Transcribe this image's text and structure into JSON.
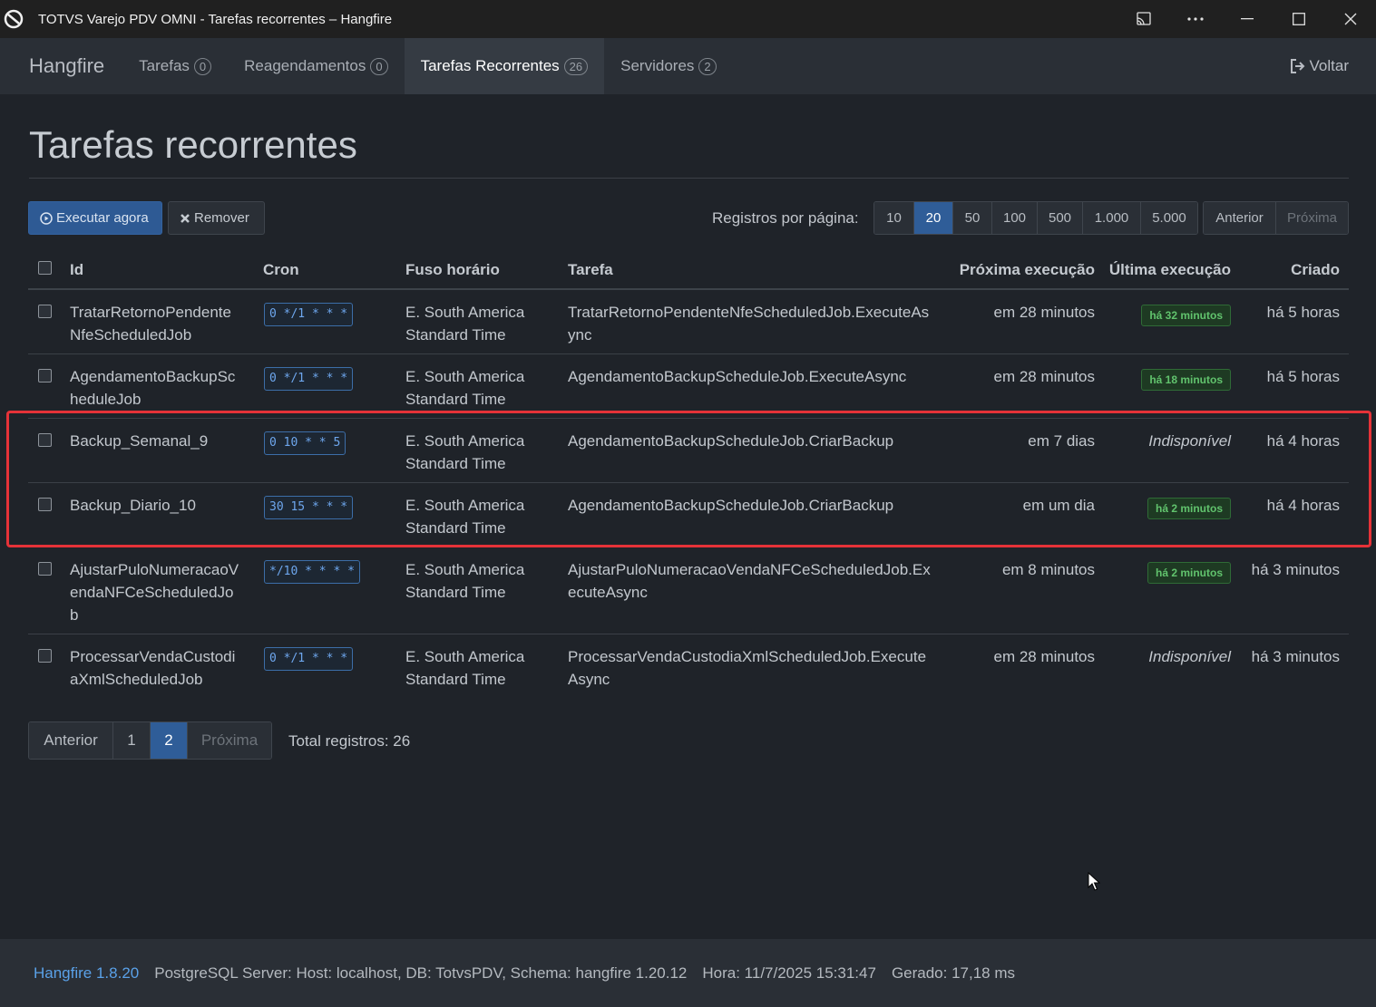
{
  "window": {
    "title": "TOTVS Varejo PDV OMNI - Tarefas recorrentes – Hangfire",
    "controls": [
      "cast-icon",
      "more-icon",
      "minimize-icon",
      "maximize-icon",
      "close-icon"
    ]
  },
  "nav": {
    "brand": "Hangfire",
    "items": [
      {
        "label": "Tarefas",
        "count": "0"
      },
      {
        "label": "Reagendamentos",
        "count": "0"
      },
      {
        "label": "Tarefas Recorrentes",
        "count": "26"
      },
      {
        "label": "Servidores",
        "count": "2"
      }
    ],
    "back_label": "Voltar"
  },
  "page": {
    "title": "Tarefas recorrentes"
  },
  "toolbar": {
    "run_now": "Executar agora",
    "remove": "Remover",
    "per_page_label": "Registros por página:",
    "per_page_options": [
      "10",
      "20",
      "50",
      "100",
      "500",
      "1.000",
      "5.000"
    ],
    "per_page_selected": "20",
    "prev": "Anterior",
    "next": "Próxima"
  },
  "table": {
    "headers": {
      "id": "Id",
      "cron": "Cron",
      "timezone": "Fuso horário",
      "job": "Tarefa",
      "next": "Próxima execução",
      "last": "Última execução",
      "created": "Criado"
    },
    "rows": [
      {
        "id": "TratarRetornoPendenteNfeScheduledJob",
        "id_l1": "TratarRetornoPendente",
        "id_l2": "NfeScheduledJob",
        "cron": "0 */1 * * *",
        "tz_l1": "E. South America",
        "tz_l2": "Standard Time",
        "job_l1": "TratarRetornoPendenteNfeScheduledJob.ExecuteAs",
        "job_l2": "ync",
        "next": "em 28 minutos",
        "last": "há 32 minutos",
        "created": "há 5 horas"
      },
      {
        "id": "AgendamentoBackupScheduleJob",
        "id_l1": "AgendamentoBackupSc",
        "id_l2": "heduleJob",
        "cron": "0 */1 * * *",
        "tz_l1": "E. South America",
        "tz_l2": "Standard Time",
        "job_l1": "AgendamentoBackupScheduleJob.ExecuteAsync",
        "job_l2": "",
        "next": "em 28 minutos",
        "last": "há 18 minutos",
        "created": "há 5 horas"
      },
      {
        "id": "Backup_Semanal_9",
        "id_l1": "Backup_Semanal_9",
        "id_l2": "",
        "cron": "0 10 * * 5",
        "tz_l1": "E. South America",
        "tz_l2": "Standard Time",
        "job_l1": "AgendamentoBackupScheduleJob.CriarBackup",
        "job_l2": "",
        "next": "em 7 dias",
        "last": "Indisponível",
        "created": "há 4 horas"
      },
      {
        "id": "Backup_Diario_10",
        "id_l1": "Backup_Diario_10",
        "id_l2": "",
        "cron": "30 15 * * *",
        "tz_l1": "E. South America",
        "tz_l2": "Standard Time",
        "job_l1": "AgendamentoBackupScheduleJob.CriarBackup",
        "job_l2": "",
        "next": "em um dia",
        "last": "há 2 minutos",
        "created": "há 4 horas"
      },
      {
        "id": "AjustarPuloNumeracaoVendaNFCeScheduledJob",
        "id_l1": "AjustarPuloNumeracaoV",
        "id_l2": "endaNFCeScheduledJo",
        "id_l3": "b",
        "cron": "*/10 * * * *",
        "tz_l1": "E. South America",
        "tz_l2": "Standard Time",
        "job_l1": "AjustarPuloNumeracaoVendaNFCeScheduledJob.Ex",
        "job_l2": "ecuteAsync",
        "next": "em 8 minutos",
        "last": "há 2 minutos",
        "created": "há 3 minutos"
      },
      {
        "id": "ProcessarVendaCustodiaXmlScheduledJob",
        "id_l1": "ProcessarVendaCustodi",
        "id_l2": "aXmlScheduledJob",
        "cron": "0 */1 * * *",
        "tz_l1": "E. South America",
        "tz_l2": "Standard Time",
        "job_l1": "ProcessarVendaCustodiaXmlScheduledJob.Execute",
        "job_l2": "Async",
        "next": "em 28 minutos",
        "last": "Indisponível",
        "created": "há 3 minutos"
      }
    ]
  },
  "pagination": {
    "prev": "Anterior",
    "pages": [
      "1",
      "2"
    ],
    "current": "2",
    "next": "Próxima",
    "total": "Total registros: 26"
  },
  "footer": {
    "version": "Hangfire 1.8.20",
    "storage": "PostgreSQL Server: Host: localhost, DB: TotvsPDV, Schema: hangfire 1.20.12",
    "time": "Hora: 11/7/2025 15:31:47",
    "generated": "Gerado: 17,18 ms"
  },
  "colors": {
    "background": "#1f2329",
    "navbar": "#2a2f36",
    "primary": "#2f5d98",
    "success": "#61c36d",
    "highlight": "#e53238",
    "link": "#5aa1e8"
  }
}
